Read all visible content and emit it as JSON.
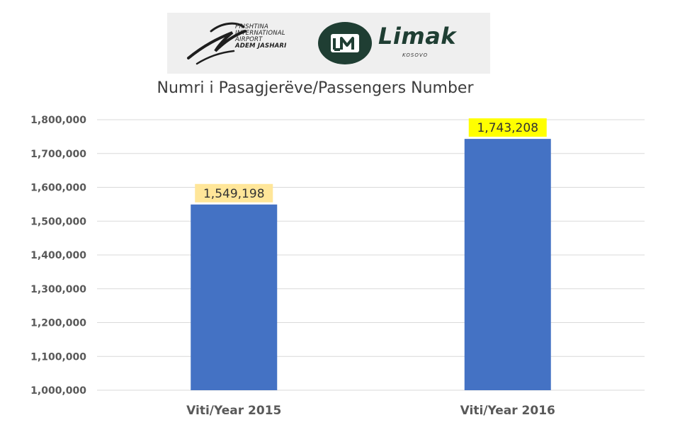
{
  "header": {
    "airport_line1": "PRISHTINA",
    "airport_line2": "INTERNATIONAL",
    "airport_line3": "AIRPORT",
    "airport_line4": "ADEM JASHARI",
    "company_name": "Limak",
    "company_region": "KOSOVO"
  },
  "chart_data": {
    "type": "bar",
    "title": "Numri i Pasagjerëve/Passengers Number",
    "xlabel": "",
    "ylabel": "",
    "categories": [
      "Viti/Year 2015",
      "Viti/Year 2016"
    ],
    "values": [
      1549198,
      1743208
    ],
    "value_labels": [
      "1,549,198",
      "1,743,208"
    ],
    "ylim": [
      1000000,
      1800000
    ],
    "yticks": [
      1000000,
      1100000,
      1200000,
      1300000,
      1400000,
      1500000,
      1600000,
      1700000,
      1800000
    ],
    "ytick_labels": [
      "1,000,000",
      "1,100,000",
      "1,200,000",
      "1,300,000",
      "1,400,000",
      "1,500,000",
      "1,600,000",
      "1,700,000",
      "1,800,000"
    ],
    "grid": true,
    "colors": {
      "bar": "#4472c4",
      "label_bg": [
        "#ffe699",
        "#ffff00"
      ],
      "grid": "#d9d9d9",
      "axis_text": "#595959"
    }
  }
}
